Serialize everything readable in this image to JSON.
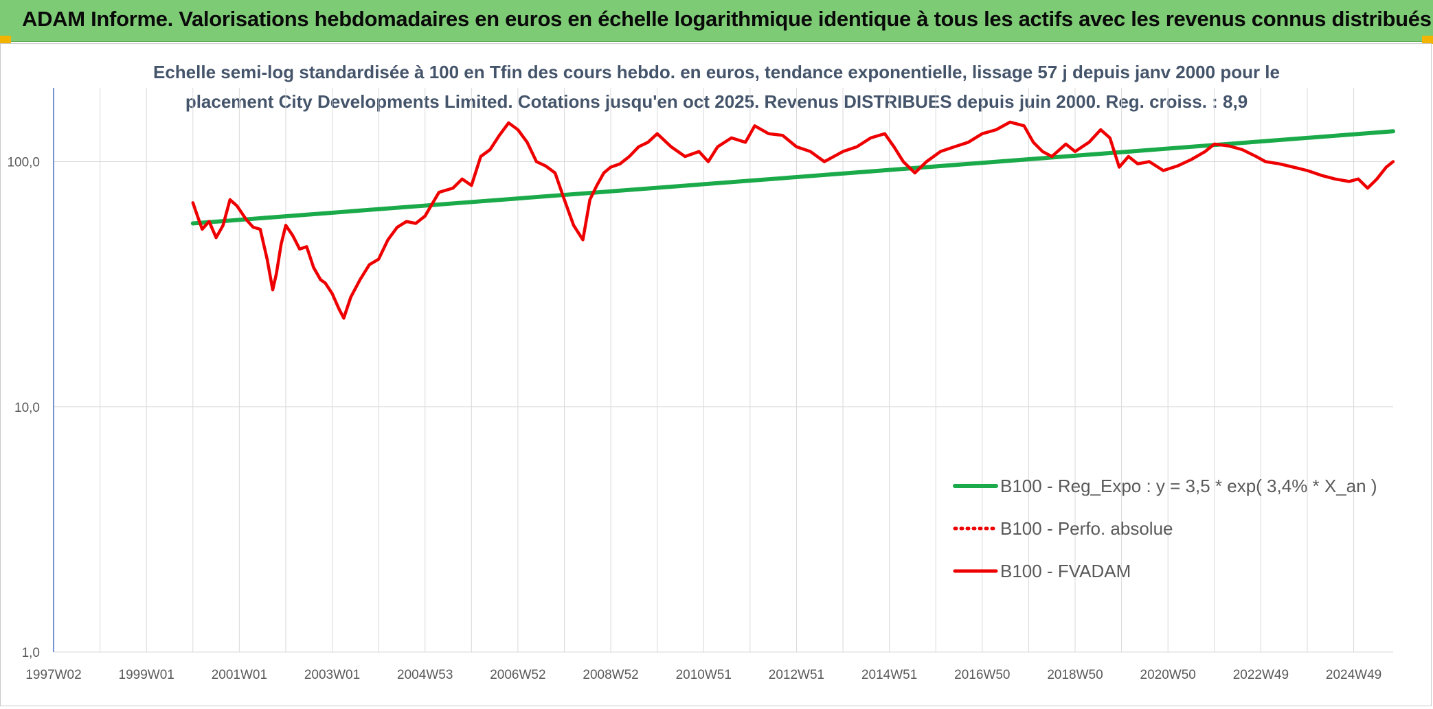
{
  "header": {
    "title": "ADAM Informe. Valorisations hebdomadaires en euros en échelle logarithmique identique à tous les actifs avec les revenus connus distribués"
  },
  "colors": {
    "header_bg": "#7ecb75",
    "corner_accent": "#f2b400",
    "title_text": "#44546a",
    "regression_line": "#1aaa4a",
    "fvadam_line": "#ee0000",
    "perfo_line": "#ee0000",
    "grid": "#d9d9d9",
    "y_axis": "#4472c4"
  },
  "chart_data": {
    "type": "line",
    "title_lines": [
      "Echelle semi-log standardisée à 100 en Tfin des cours hebdo. en euros, tendance exponentielle, lissage 57 j depuis janv 2000 pour le",
      "placement City Developments Limited. Cotations jusqu'en oct 2025. Revenus DISTRIBUES depuis juin 2000. Reg. croiss. : 8,9"
    ],
    "y_scale": "log",
    "ylim": [
      1,
      200
    ],
    "y_ticks": [
      {
        "value": 1,
        "label": "1,0"
      },
      {
        "value": 10,
        "label": "10,0"
      },
      {
        "value": 100,
        "label": "100,0"
      }
    ],
    "x_unit": "year",
    "xlim": [
      1997.0,
      2025.85
    ],
    "x_ticks": [
      {
        "label": "1997W02",
        "year": 1997.0
      },
      {
        "label": "1999W01",
        "year": 1999.0
      },
      {
        "label": "2001W01",
        "year": 2001.0
      },
      {
        "label": "2003W01",
        "year": 2003.0
      },
      {
        "label": "2004W53",
        "year": 2005.0
      },
      {
        "label": "2006W52",
        "year": 2007.0
      },
      {
        "label": "2008W52",
        "year": 2009.0
      },
      {
        "label": "2010W51",
        "year": 2011.0
      },
      {
        "label": "2012W51",
        "year": 2013.0
      },
      {
        "label": "2014W51",
        "year": 2015.0
      },
      {
        "label": "2016W50",
        "year": 2017.0
      },
      {
        "label": "2018W50",
        "year": 2019.0
      },
      {
        "label": "2020W50",
        "year": 2021.0
      },
      {
        "label": "2022W49",
        "year": 2023.0
      },
      {
        "label": "2024W49",
        "year": 2025.0
      }
    ],
    "vertical_grid_years": [
      1997,
      1998,
      1999,
      2000,
      2001,
      2002,
      2003,
      2004,
      2005,
      2006,
      2007,
      2008,
      2009,
      2010,
      2011,
      2012,
      2013,
      2014,
      2015,
      2016,
      2017,
      2018,
      2019,
      2020,
      2021,
      2022,
      2023,
      2024,
      2025
    ],
    "legend_position": "bottom-right",
    "series": [
      {
        "name": "B100 - Reg_Expo : y = 3,5 * exp( 3,4% *  X_an )",
        "style": "solid-thick",
        "color": "#1aaa4a",
        "x": [
          2000.0,
          2025.85
        ],
        "y": [
          56,
          133
        ]
      },
      {
        "name": "B100 - Perfo. absolue",
        "style": "dotted",
        "color": "#ee0000",
        "x": [],
        "y": []
      },
      {
        "name": "B100 - FVADAM",
        "style": "solid",
        "color": "#ee0000",
        "x": [
          2000.0,
          2000.1,
          2000.2,
          2000.35,
          2000.5,
          2000.65,
          2000.8,
          2000.95,
          2001.15,
          2001.3,
          2001.45,
          2001.6,
          2001.72,
          2001.8,
          2001.9,
          2002.0,
          2002.15,
          2002.3,
          2002.45,
          2002.6,
          2002.75,
          2002.85,
          2003.0,
          2003.15,
          2003.25,
          2003.4,
          2003.6,
          2003.8,
          2004.0,
          2004.2,
          2004.4,
          2004.6,
          2004.8,
          2005.0,
          2005.3,
          2005.6,
          2005.8,
          2006.0,
          2006.2,
          2006.4,
          2006.6,
          2006.8,
          2007.0,
          2007.2,
          2007.4,
          2007.6,
          2007.8,
          2008.0,
          2008.2,
          2008.4,
          2008.55,
          2008.7,
          2008.85,
          2009.0,
          2009.2,
          2009.4,
          2009.6,
          2009.8,
          2010.0,
          2010.3,
          2010.6,
          2010.9,
          2011.1,
          2011.3,
          2011.6,
          2011.9,
          2012.1,
          2012.4,
          2012.7,
          2013.0,
          2013.3,
          2013.6,
          2014.0,
          2014.3,
          2014.6,
          2014.9,
          2015.1,
          2015.3,
          2015.55,
          2015.8,
          2016.1,
          2016.4,
          2016.7,
          2017.0,
          2017.3,
          2017.6,
          2017.9,
          2018.1,
          2018.3,
          2018.5,
          2018.8,
          2019.0,
          2019.3,
          2019.55,
          2019.75,
          2019.95,
          2020.15,
          2020.35,
          2020.6,
          2020.9,
          2021.2,
          2021.5,
          2021.8,
          2022.0,
          2022.3,
          2022.6,
          2022.9,
          2023.1,
          2023.4,
          2023.7,
          2024.0,
          2024.3,
          2024.6,
          2024.9,
          2025.1,
          2025.3,
          2025.5,
          2025.7,
          2025.85
        ],
        "y": [
          68,
          60,
          53,
          57,
          49,
          55,
          70,
          66,
          58,
          54,
          53,
          40,
          30,
          35,
          46,
          55,
          50,
          44,
          45,
          37,
          33,
          32,
          29,
          25,
          23,
          28,
          33,
          38,
          40,
          48,
          54,
          57,
          56,
          60,
          75,
          78,
          85,
          80,
          105,
          112,
          128,
          144,
          135,
          120,
          100,
          96,
          90,
          70,
          55,
          48,
          70,
          80,
          90,
          95,
          98,
          105,
          115,
          120,
          130,
          115,
          105,
          110,
          100,
          115,
          125,
          120,
          140,
          130,
          128,
          115,
          110,
          100,
          110,
          115,
          125,
          130,
          115,
          100,
          90,
          100,
          110,
          115,
          120,
          130,
          135,
          145,
          140,
          120,
          110,
          105,
          118,
          110,
          120,
          135,
          125,
          95,
          105,
          98,
          100,
          92,
          96,
          102,
          110,
          118,
          116,
          112,
          105,
          100,
          98,
          95,
          92,
          88,
          85,
          83,
          85,
          78,
          85,
          95,
          100
        ]
      }
    ]
  }
}
